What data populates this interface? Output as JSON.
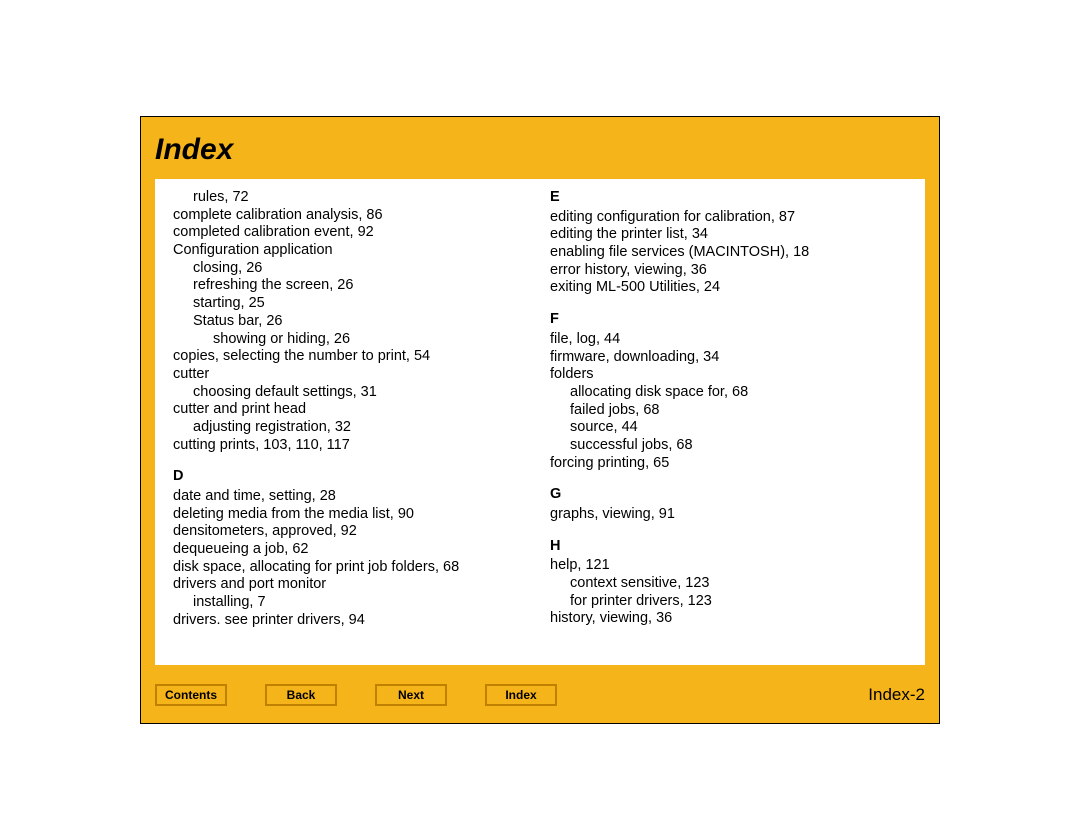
{
  "page": {
    "title": "Index",
    "page_number": "Index-2",
    "colors": {
      "frame_background": "#f4b41a",
      "content_background": "#ffffff",
      "border": "#000000",
      "button_border": "#c08000",
      "text": "#000000"
    },
    "fonts": {
      "title_size_pt": 30,
      "body_size_pt": 14.5,
      "nav_size_pt": 12,
      "page_num_size_pt": 17
    }
  },
  "nav": {
    "contents": "Contents",
    "back": "Back",
    "next": "Next",
    "index": "Index"
  },
  "left_column": [
    {
      "text": "rules, 72",
      "indent": 1,
      "type": "entry"
    },
    {
      "text": "complete calibration analysis, 86",
      "indent": 0,
      "type": "entry"
    },
    {
      "text": "completed calibration event, 92",
      "indent": 0,
      "type": "entry"
    },
    {
      "text": "Configuration application",
      "indent": 0,
      "type": "entry"
    },
    {
      "text": "closing, 26",
      "indent": 1,
      "type": "entry"
    },
    {
      "text": "refreshing the screen, 26",
      "indent": 1,
      "type": "entry"
    },
    {
      "text": "starting, 25",
      "indent": 1,
      "type": "entry"
    },
    {
      "text": "Status bar, 26",
      "indent": 1,
      "type": "entry"
    },
    {
      "text": "showing or hiding, 26",
      "indent": 2,
      "type": "entry"
    },
    {
      "text": "copies, selecting the number to print, 54",
      "indent": 0,
      "type": "entry"
    },
    {
      "text": "cutter",
      "indent": 0,
      "type": "entry"
    },
    {
      "text": "choosing default settings, 31",
      "indent": 1,
      "type": "entry"
    },
    {
      "text": "cutter and print head",
      "indent": 0,
      "type": "entry"
    },
    {
      "text": "adjusting registration, 32",
      "indent": 1,
      "type": "entry"
    },
    {
      "text": "cutting prints, 103, 110, 117",
      "indent": 0,
      "type": "entry"
    },
    {
      "text": "D",
      "indent": 0,
      "type": "letter"
    },
    {
      "text": "date and time, setting, 28",
      "indent": 0,
      "type": "entry"
    },
    {
      "text": "deleting media from the media list, 90",
      "indent": 0,
      "type": "entry"
    },
    {
      "text": "densitometers, approved, 92",
      "indent": 0,
      "type": "entry"
    },
    {
      "text": "dequeueing a job, 62",
      "indent": 0,
      "type": "entry"
    },
    {
      "text": "disk space, allocating for print job folders, 68",
      "indent": 0,
      "type": "entry"
    },
    {
      "text": "drivers and port monitor",
      "indent": 0,
      "type": "entry"
    },
    {
      "text": "installing, 7",
      "indent": 1,
      "type": "entry"
    },
    {
      "text": "drivers. see printer drivers, 94",
      "indent": 0,
      "type": "entry"
    }
  ],
  "right_column": [
    {
      "text": "E",
      "indent": 0,
      "type": "letter-first"
    },
    {
      "text": "editing configuration for calibration, 87",
      "indent": 0,
      "type": "entry"
    },
    {
      "text": "editing the printer list, 34",
      "indent": 0,
      "type": "entry"
    },
    {
      "text": "enabling file services (MACINTOSH), 18",
      "indent": 0,
      "type": "entry"
    },
    {
      "text": "error history, viewing, 36",
      "indent": 0,
      "type": "entry"
    },
    {
      "text": "exiting ML-500 Utilities, 24",
      "indent": 0,
      "type": "entry"
    },
    {
      "text": "F",
      "indent": 0,
      "type": "letter"
    },
    {
      "text": "file, log, 44",
      "indent": 0,
      "type": "entry"
    },
    {
      "text": "firmware, downloading, 34",
      "indent": 0,
      "type": "entry"
    },
    {
      "text": "folders",
      "indent": 0,
      "type": "entry"
    },
    {
      "text": "allocating disk space for, 68",
      "indent": 1,
      "type": "entry"
    },
    {
      "text": "failed jobs, 68",
      "indent": 1,
      "type": "entry"
    },
    {
      "text": "source, 44",
      "indent": 1,
      "type": "entry"
    },
    {
      "text": "successful jobs, 68",
      "indent": 1,
      "type": "entry"
    },
    {
      "text": "forcing printing, 65",
      "indent": 0,
      "type": "entry"
    },
    {
      "text": "G",
      "indent": 0,
      "type": "letter"
    },
    {
      "text": "graphs, viewing, 91",
      "indent": 0,
      "type": "entry"
    },
    {
      "text": "H",
      "indent": 0,
      "type": "letter"
    },
    {
      "text": "help, 121",
      "indent": 0,
      "type": "entry"
    },
    {
      "text": "context sensitive, 123",
      "indent": 1,
      "type": "entry"
    },
    {
      "text": "for printer drivers, 123",
      "indent": 1,
      "type": "entry"
    },
    {
      "text": "history, viewing, 36",
      "indent": 0,
      "type": "entry"
    }
  ]
}
